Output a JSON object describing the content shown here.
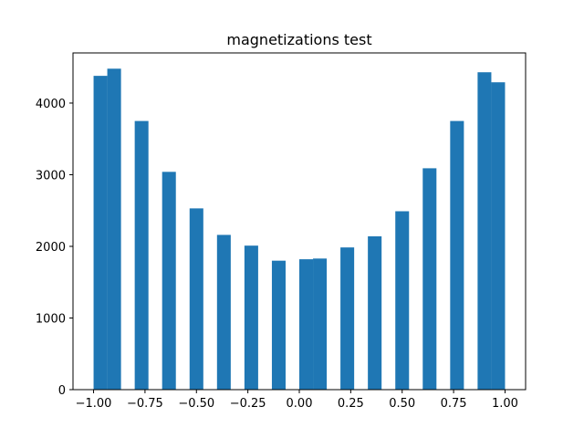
{
  "chart_data": {
    "type": "bar",
    "title": "magnetizations test",
    "xlabel": "",
    "ylabel": "",
    "xlim": [
      -1.1,
      1.1
    ],
    "ylim": [
      0,
      4700
    ],
    "x_ticks": [
      -1.0,
      -0.75,
      -0.5,
      -0.25,
      0.0,
      0.25,
      0.5,
      0.75,
      1.0
    ],
    "x_tick_labels": [
      "−1.00",
      "−0.75",
      "−0.50",
      "−0.25",
      "0.00",
      "0.25",
      "0.50",
      "0.75",
      "1.00"
    ],
    "y_ticks": [
      0,
      1000,
      2000,
      3000,
      4000
    ],
    "y_tick_labels": [
      "0",
      "1000",
      "2000",
      "3000",
      "4000"
    ],
    "bin_width": 0.0667,
    "bins": [
      {
        "x0": -1.0,
        "value": 4380
      },
      {
        "x0": -0.9333,
        "value": 4480
      },
      {
        "x0": -0.8,
        "value": 3750
      },
      {
        "x0": -0.6667,
        "value": 3040
      },
      {
        "x0": -0.5333,
        "value": 2530
      },
      {
        "x0": -0.4,
        "value": 2160
      },
      {
        "x0": -0.2667,
        "value": 2010
      },
      {
        "x0": -0.1333,
        "value": 1800
      },
      {
        "x0": 0.0,
        "value": 1820
      },
      {
        "x0": 0.0667,
        "value": 1830
      },
      {
        "x0": 0.2,
        "value": 1985
      },
      {
        "x0": 0.3333,
        "value": 2140
      },
      {
        "x0": 0.4667,
        "value": 2490
      },
      {
        "x0": 0.6,
        "value": 3090
      },
      {
        "x0": 0.7333,
        "value": 3750
      },
      {
        "x0": 0.8667,
        "value": 4430
      },
      {
        "x0": 0.9333,
        "value": 4290
      }
    ],
    "bar_color": "#1f77b4",
    "grid": false,
    "legend": "none"
  }
}
